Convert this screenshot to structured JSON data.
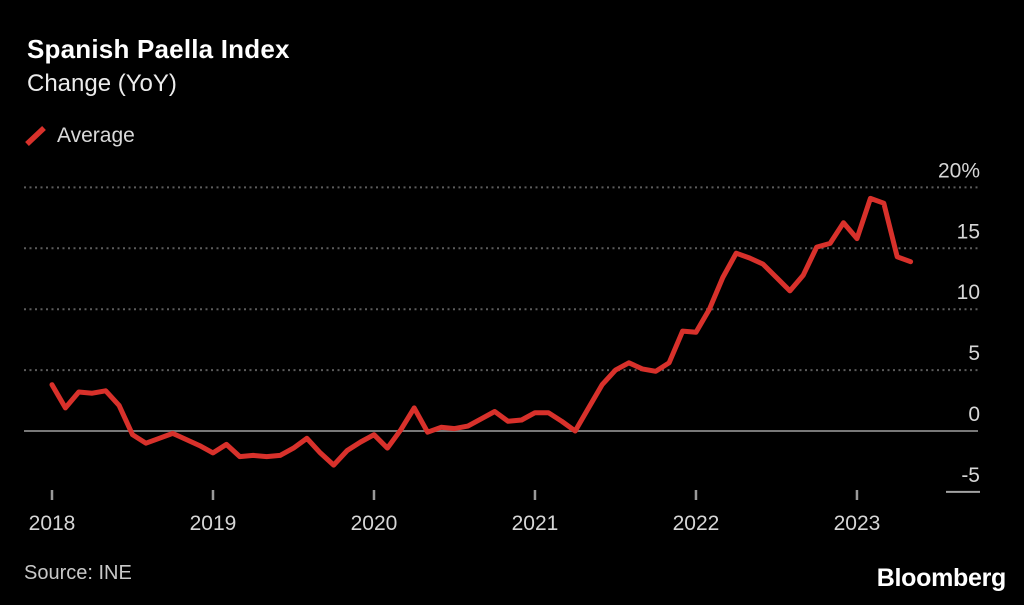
{
  "header": {
    "title": "Spanish Paella Index",
    "subtitle": "Change (YoY)"
  },
  "legend": {
    "label": "Average"
  },
  "footer": {
    "source": "Source: INE",
    "brand": "Bloomberg"
  },
  "colors": {
    "background": "#000000",
    "series_red": "#d8312b",
    "text_primary": "#ffffff",
    "text_secondary": "#d6d6d6",
    "gridline": "#5c5c5c",
    "zero_line": "#787878"
  },
  "chart_data": {
    "type": "line",
    "title": "Spanish Paella Index",
    "subtitle": "Change (YoY)",
    "xlabel": "",
    "ylabel": "Change (YoY), %",
    "legend_position": "top-left",
    "grid": "horizontal dotted",
    "ylim": [
      -6.5,
      21
    ],
    "x_frequency": "monthly",
    "x": [
      "2018-01",
      "2018-02",
      "2018-03",
      "2018-04",
      "2018-05",
      "2018-06",
      "2018-07",
      "2018-08",
      "2018-09",
      "2018-10",
      "2018-11",
      "2018-12",
      "2019-01",
      "2019-02",
      "2019-03",
      "2019-04",
      "2019-05",
      "2019-06",
      "2019-07",
      "2019-08",
      "2019-09",
      "2019-10",
      "2019-11",
      "2019-12",
      "2020-01",
      "2020-02",
      "2020-03",
      "2020-04",
      "2020-05",
      "2020-06",
      "2020-07",
      "2020-08",
      "2020-09",
      "2020-10",
      "2020-11",
      "2020-12",
      "2021-01",
      "2021-02",
      "2021-03",
      "2021-04",
      "2021-05",
      "2021-06",
      "2021-07",
      "2021-08",
      "2021-09",
      "2021-10",
      "2021-11",
      "2021-12",
      "2022-01",
      "2022-02",
      "2022-03",
      "2022-04",
      "2022-05",
      "2022-06",
      "2022-07",
      "2022-08",
      "2022-09",
      "2022-10",
      "2022-11",
      "2022-12",
      "2023-01",
      "2023-02",
      "2023-03",
      "2023-04",
      "2023-05"
    ],
    "series": [
      {
        "name": "Average",
        "color": "#d8312b",
        "values": [
          3.8,
          1.9,
          3.2,
          3.1,
          3.3,
          2.1,
          -0.3,
          -1.0,
          -0.6,
          -0.2,
          -0.7,
          -1.2,
          -1.8,
          -1.1,
          -2.1,
          -2.0,
          -2.1,
          -2.0,
          -1.4,
          -0.6,
          -1.8,
          -2.8,
          -1.6,
          -0.9,
          -0.3,
          -1.4,
          0.1,
          1.9,
          -0.1,
          0.3,
          0.2,
          0.4,
          1.0,
          1.6,
          0.8,
          0.9,
          1.5,
          1.5,
          0.8,
          0.0,
          1.9,
          3.8,
          5.0,
          5.6,
          5.1,
          4.9,
          5.6,
          8.2,
          8.1,
          10.0,
          12.6,
          14.6,
          14.2,
          13.7,
          12.6,
          11.5,
          12.8,
          15.1,
          15.4,
          17.1,
          15.8,
          19.1,
          18.7,
          14.3,
          13.9
        ]
      }
    ],
    "y_ticks": [
      {
        "label": "20%",
        "value": 20,
        "style": "dotted"
      },
      {
        "label": "15",
        "value": 15,
        "style": "dotted"
      },
      {
        "label": "10",
        "value": 10,
        "style": "dotted"
      },
      {
        "label": "5",
        "value": 5,
        "style": "dotted"
      },
      {
        "label": "0",
        "value": 0,
        "style": "solid"
      },
      {
        "label": "-5",
        "value": -5,
        "style": "short"
      }
    ],
    "x_tick_labels": [
      "2018",
      "2019",
      "2020",
      "2021",
      "2022",
      "2023"
    ]
  }
}
